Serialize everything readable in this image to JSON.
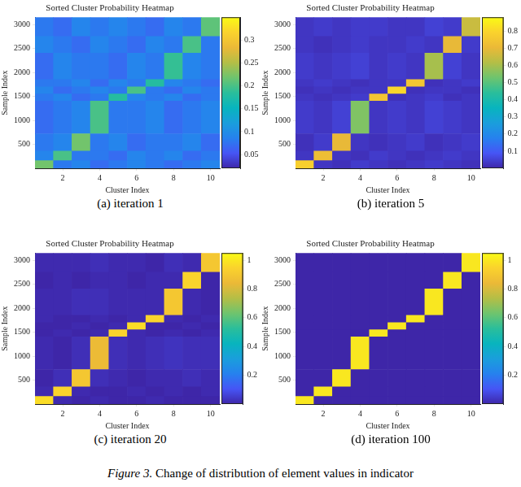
{
  "chart_data": [
    {
      "type": "heatmap",
      "title": "Sorted Cluster Probability Heatmap",
      "x_label": "Cluster Index",
      "y_label": "Sample Index",
      "caption": "(a) iteration 1",
      "x": [
        1,
        2,
        3,
        4,
        5,
        6,
        7,
        8,
        9,
        10
      ],
      "xlim": [
        0.5,
        10.5
      ],
      "xticks": [
        2,
        4,
        6,
        8,
        10
      ],
      "ylim": [
        0,
        3150
      ],
      "yticks": [
        500,
        1000,
        1500,
        2000,
        2500,
        3000
      ],
      "y_edges": [
        0,
        160,
        360,
        720,
        1400,
        1550,
        1700,
        1850,
        2400,
        2750,
        3150
      ],
      "cells": [
        [
          0.22,
          0.08,
          0.09,
          0.07,
          0.08,
          0.09,
          0.08,
          0.07,
          0.08,
          0.09
        ],
        [
          0.09,
          0.2,
          0.08,
          0.08,
          0.07,
          0.09,
          0.08,
          0.09,
          0.07,
          0.08
        ],
        [
          0.08,
          0.09,
          0.22,
          0.08,
          0.09,
          0.07,
          0.08,
          0.08,
          0.09,
          0.07
        ],
        [
          0.07,
          0.08,
          0.09,
          0.2,
          0.08,
          0.08,
          0.09,
          0.07,
          0.08,
          0.09
        ],
        [
          0.08,
          0.09,
          0.07,
          0.08,
          0.18,
          0.09,
          0.08,
          0.09,
          0.07,
          0.08
        ],
        [
          0.09,
          0.07,
          0.08,
          0.09,
          0.08,
          0.2,
          0.08,
          0.07,
          0.09,
          0.08
        ],
        [
          0.08,
          0.08,
          0.09,
          0.07,
          0.09,
          0.08,
          0.18,
          0.09,
          0.08,
          0.07
        ],
        [
          0.07,
          0.09,
          0.08,
          0.08,
          0.07,
          0.09,
          0.08,
          0.19,
          0.09,
          0.08
        ],
        [
          0.09,
          0.08,
          0.07,
          0.09,
          0.08,
          0.07,
          0.09,
          0.08,
          0.2,
          0.08
        ],
        [
          0.08,
          0.07,
          0.09,
          0.08,
          0.09,
          0.08,
          0.07,
          0.09,
          0.08,
          0.21
        ]
      ],
      "colorbar": {
        "range": [
          0.02,
          0.35
        ],
        "ticks": [
          0.05,
          0.1,
          0.15,
          0.2,
          0.25,
          0.3
        ]
      }
    },
    {
      "type": "heatmap",
      "title": "Sorted Cluster Probability Heatmap",
      "x_label": "Cluster Index",
      "y_label": "Sample Index",
      "caption": "(b) iteration 5",
      "x": [
        1,
        2,
        3,
        4,
        5,
        6,
        7,
        8,
        9,
        10
      ],
      "xlim": [
        0.5,
        10.5
      ],
      "xticks": [
        2,
        4,
        6,
        8,
        10
      ],
      "ylim": [
        0,
        3150
      ],
      "yticks": [
        500,
        1000,
        1500,
        2000,
        2500,
        3000
      ],
      "y_edges": [
        0,
        160,
        360,
        720,
        1400,
        1550,
        1700,
        1850,
        2400,
        2750,
        3150
      ],
      "cells": [
        [
          0.78,
          0.03,
          0.02,
          0.04,
          0.03,
          0.02,
          0.03,
          0.04,
          0.03,
          0.02
        ],
        [
          0.03,
          0.72,
          0.03,
          0.02,
          0.04,
          0.03,
          0.02,
          0.03,
          0.04,
          0.03
        ],
        [
          0.02,
          0.04,
          0.7,
          0.03,
          0.02,
          0.03,
          0.04,
          0.02,
          0.03,
          0.04
        ],
        [
          0.04,
          0.03,
          0.05,
          0.55,
          0.03,
          0.04,
          0.03,
          0.05,
          0.04,
          0.03
        ],
        [
          0.03,
          0.02,
          0.03,
          0.04,
          0.75,
          0.02,
          0.03,
          0.04,
          0.02,
          0.03
        ],
        [
          0.02,
          0.03,
          0.02,
          0.03,
          0.03,
          0.8,
          0.02,
          0.03,
          0.03,
          0.02
        ],
        [
          0.03,
          0.04,
          0.03,
          0.02,
          0.03,
          0.03,
          0.75,
          0.02,
          0.03,
          0.04
        ],
        [
          0.04,
          0.03,
          0.04,
          0.05,
          0.03,
          0.04,
          0.03,
          0.6,
          0.05,
          0.03
        ],
        [
          0.03,
          0.02,
          0.03,
          0.04,
          0.03,
          0.03,
          0.04,
          0.03,
          0.7,
          0.04
        ],
        [
          0.03,
          0.04,
          0.03,
          0.04,
          0.04,
          0.03,
          0.03,
          0.05,
          0.04,
          0.65
        ]
      ],
      "colorbar": {
        "range": [
          0,
          0.88
        ],
        "ticks": [
          0.1,
          0.2,
          0.3,
          0.4,
          0.5,
          0.6,
          0.7,
          0.8
        ]
      }
    },
    {
      "type": "heatmap",
      "title": "Sorted Cluster Probability Heatmap",
      "x_label": "Cluster Index",
      "y_label": "Sample Index",
      "caption": "(c) iteration 20",
      "x": [
        1,
        2,
        3,
        4,
        5,
        6,
        7,
        8,
        9,
        10
      ],
      "xlim": [
        0.5,
        10.5
      ],
      "xticks": [
        2,
        4,
        6,
        8,
        10
      ],
      "ylim": [
        0,
        3150
      ],
      "yticks": [
        500,
        1000,
        1500,
        2000,
        2500,
        3000
      ],
      "y_edges": [
        0,
        160,
        360,
        720,
        1400,
        1550,
        1700,
        1850,
        2400,
        2750,
        3150
      ],
      "cells": [
        [
          0.97,
          0.01,
          0.0,
          0.01,
          0.0,
          0.0,
          0.01,
          0.0,
          0.0,
          0.0
        ],
        [
          0.01,
          0.95,
          0.01,
          0.0,
          0.0,
          0.01,
          0.0,
          0.01,
          0.0,
          0.01
        ],
        [
          0.0,
          0.02,
          0.9,
          0.02,
          0.01,
          0.0,
          0.01,
          0.01,
          0.02,
          0.01
        ],
        [
          0.01,
          0.0,
          0.02,
          0.85,
          0.02,
          0.01,
          0.02,
          0.03,
          0.02,
          0.02
        ],
        [
          0.0,
          0.01,
          0.0,
          0.01,
          0.95,
          0.01,
          0.0,
          0.01,
          0.0,
          0.01
        ],
        [
          0.0,
          0.0,
          0.01,
          0.0,
          0.01,
          0.97,
          0.0,
          0.0,
          0.01,
          0.0
        ],
        [
          0.01,
          0.0,
          0.0,
          0.01,
          0.0,
          0.01,
          0.95,
          0.01,
          0.0,
          0.01
        ],
        [
          0.01,
          0.01,
          0.02,
          0.02,
          0.01,
          0.01,
          0.01,
          0.9,
          0.01,
          0.0
        ],
        [
          0.0,
          0.01,
          0.0,
          0.01,
          0.01,
          0.0,
          0.01,
          0.01,
          0.95,
          0.0
        ],
        [
          0.01,
          0.01,
          0.01,
          0.02,
          0.01,
          0.01,
          0.0,
          0.02,
          0.01,
          0.9
        ]
      ],
      "colorbar": {
        "range": [
          0,
          1.05
        ],
        "ticks": [
          0.2,
          0.4,
          0.6,
          0.8,
          1
        ]
      }
    },
    {
      "type": "heatmap",
      "title": "Sorted Cluster Probability Heatmap",
      "x_label": "Cluster Index",
      "y_label": "Sample Index",
      "caption": "(d) iteration 100",
      "x": [
        1,
        2,
        3,
        4,
        5,
        6,
        7,
        8,
        9,
        10
      ],
      "xlim": [
        0.5,
        10.5
      ],
      "xticks": [
        2,
        4,
        6,
        8,
        10
      ],
      "ylim": [
        0,
        3150
      ],
      "yticks": [
        500,
        1000,
        1500,
        2000,
        2500,
        3000
      ],
      "y_edges": [
        0,
        160,
        360,
        720,
        1400,
        1550,
        1700,
        1850,
        2400,
        2750,
        3150
      ],
      "cells": [
        [
          1,
          0,
          0,
          0,
          0,
          0,
          0,
          0,
          0,
          0
        ],
        [
          0,
          1,
          0,
          0,
          0,
          0,
          0,
          0,
          0,
          0
        ],
        [
          0,
          0,
          1,
          0,
          0,
          0,
          0,
          0,
          0,
          0
        ],
        [
          0,
          0,
          0,
          1,
          0,
          0,
          0,
          0,
          0,
          0
        ],
        [
          0,
          0,
          0,
          0,
          1,
          0,
          0,
          0,
          0,
          0
        ],
        [
          0,
          0,
          0,
          0,
          0,
          1,
          0,
          0,
          0,
          0
        ],
        [
          0,
          0,
          0,
          0,
          0,
          0,
          1,
          0,
          0,
          0
        ],
        [
          0,
          0,
          0,
          0,
          0,
          0,
          0,
          1,
          0,
          0
        ],
        [
          0,
          0,
          0,
          0,
          0,
          0,
          0,
          0,
          1,
          0
        ],
        [
          0,
          0,
          0,
          0,
          0,
          0,
          0,
          0,
          0,
          1
        ]
      ],
      "colorbar": {
        "range": [
          0,
          1.05
        ],
        "ticks": [
          0.2,
          0.4,
          0.6,
          0.8,
          1
        ]
      }
    }
  ],
  "caption_label": "Figure 3.",
  "caption_text": "Change of distribution of element values in indicator"
}
